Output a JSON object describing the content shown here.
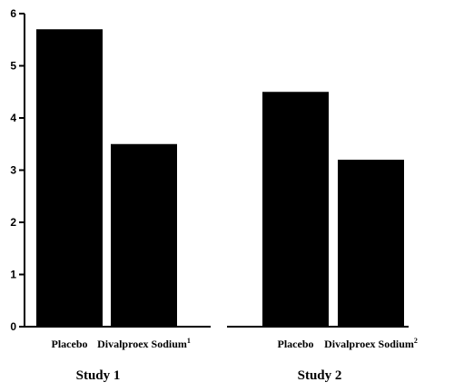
{
  "chart_data": {
    "type": "bar",
    "title": "",
    "xlabel": "",
    "ylabel": "",
    "ylim": [
      0,
      6
    ],
    "yticks": [
      "0",
      "1",
      "2",
      "3",
      "4",
      "5",
      "6"
    ],
    "grid": false,
    "bar_color": "#000000",
    "groups": [
      {
        "name": "Study 1",
        "bars": [
          {
            "label": "Placebo",
            "superscript": "",
            "value": 5.7
          },
          {
            "label": "Divalproex Sodium",
            "superscript": "1",
            "value": 3.5
          }
        ]
      },
      {
        "name": "Study 2",
        "bars": [
          {
            "label": "Placebo",
            "superscript": "",
            "value": 4.5
          },
          {
            "label": "Divalproex Sodium",
            "superscript": "2",
            "value": 3.2
          }
        ]
      }
    ]
  }
}
